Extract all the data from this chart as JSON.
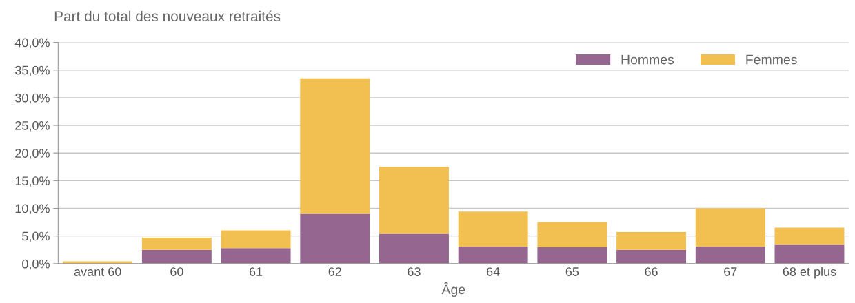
{
  "chart_data": {
    "type": "bar",
    "title": "Part du total des nouveaux retraités",
    "xlabel": "Âge",
    "stacked": true,
    "categories": [
      "avant 60",
      "60",
      "61",
      "62",
      "63",
      "64",
      "65",
      "66",
      "67",
      "68 et plus"
    ],
    "series": [
      {
        "name": "Hommes",
        "color": "#95668f",
        "values": [
          null,
          2.5,
          2.8,
          9.0,
          5.4,
          3.1,
          3.0,
          2.5,
          3.1,
          3.4
        ]
      },
      {
        "name": "Femmes",
        "color": "#f2c050",
        "values": [
          0.4,
          2.2,
          3.2,
          24.5,
          12.1,
          6.3,
          4.5,
          3.2,
          6.9,
          3.1
        ]
      }
    ],
    "ylim": [
      0,
      40
    ],
    "yticks": [
      {
        "value": 0,
        "label": "0,0%"
      },
      {
        "value": 5,
        "label": "5,0%"
      },
      {
        "value": 10,
        "label": "10,0%"
      },
      {
        "value": 15,
        "label": "15,0%"
      },
      {
        "value": 20,
        "label": "20,0%"
      },
      {
        "value": 25,
        "label": "25,0%"
      },
      {
        "value": 30,
        "label": "30,0%"
      },
      {
        "value": 35,
        "label": "35,0%"
      },
      {
        "value": 40,
        "label": "40,0%"
      }
    ],
    "grid": "y",
    "legend": "top right"
  }
}
